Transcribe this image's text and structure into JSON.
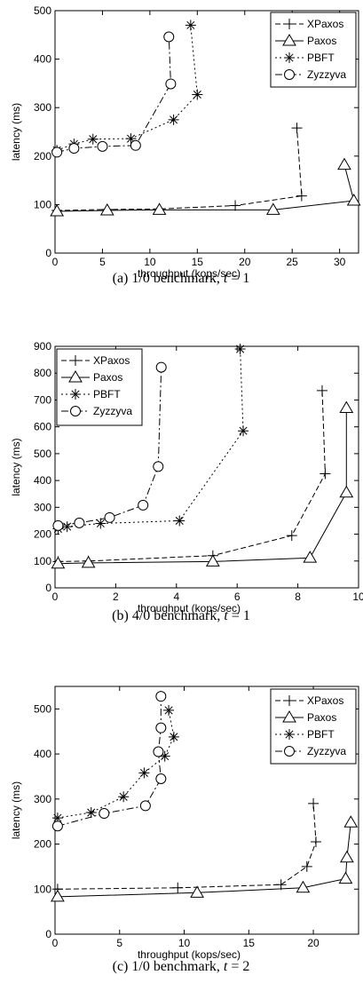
{
  "chart_data": [
    {
      "type": "line",
      "caption": "(a) 1/0 benchmark, t = 1",
      "caption_prefix": "(a) 1/0 benchmark, ",
      "caption_var": "t",
      "caption_suffix": " = 1",
      "xlabel": "throughput (kops/sec)",
      "ylabel": "latency (ms)",
      "xlim": [
        0,
        32
      ],
      "ylim": [
        0,
        500
      ],
      "xticks": [
        "0",
        "5",
        "10",
        "15",
        "20",
        "25",
        "30"
      ],
      "xtick_values": [
        0,
        5,
        10,
        15,
        20,
        25,
        30
      ],
      "yticks": [
        "0",
        "100",
        "200",
        "300",
        "400",
        "500"
      ],
      "ytick_values": [
        0,
        100,
        200,
        300,
        400,
        500
      ],
      "legend_position": "top-right",
      "series": [
        {
          "name": "XPaxos",
          "marker": "plus",
          "dash": "6,3",
          "points": [
            [
              0.2,
              88
            ],
            [
              5.5,
              90
            ],
            [
              11.0,
              91
            ],
            [
              19.0,
              98
            ],
            [
              26.0,
              118
            ],
            [
              25.5,
              258
            ]
          ]
        },
        {
          "name": "Paxos",
          "marker": "triangle",
          "dash": "none",
          "points": [
            [
              0.2,
              86
            ],
            [
              5.5,
              88
            ],
            [
              11.0,
              89
            ],
            [
              23.0,
              89
            ],
            [
              31.5,
              108
            ],
            [
              30.5,
              182
            ]
          ]
        },
        {
          "name": "PBFT",
          "marker": "star",
          "dash": "2,3",
          "points": [
            [
              0.2,
              212
            ],
            [
              2.0,
              225
            ],
            [
              4.0,
              235
            ],
            [
              8.0,
              236
            ],
            [
              12.5,
              275
            ],
            [
              15.0,
              327
            ],
            [
              14.3,
              470
            ]
          ]
        },
        {
          "name": "Zyzzyva",
          "marker": "circle",
          "dash": "8,3,2,3",
          "points": [
            [
              0.2,
              208
            ],
            [
              2.0,
              216
            ],
            [
              5.0,
              220
            ],
            [
              8.5,
              222
            ],
            [
              12.2,
              349
            ],
            [
              12.0,
              446
            ]
          ]
        }
      ]
    },
    {
      "type": "line",
      "caption": "(b) 4/0 benchmark, t = 1",
      "caption_prefix": "(b) 4/0 benchmark, ",
      "caption_var": "t",
      "caption_suffix": " = 1",
      "xlabel": "throughput (kops/sec)",
      "ylabel": "latency (ms)",
      "xlim": [
        0,
        10
      ],
      "ylim": [
        0,
        900
      ],
      "xticks": [
        "0",
        "2",
        "4",
        "6",
        "8",
        "10"
      ],
      "xtick_values": [
        0,
        2,
        4,
        6,
        8,
        10
      ],
      "yticks": [
        "0",
        "100",
        "200",
        "300",
        "400",
        "500",
        "600",
        "700",
        "800",
        "900"
      ],
      "ytick_values": [
        0,
        100,
        200,
        300,
        400,
        500,
        600,
        700,
        800,
        900
      ],
      "legend_position": "top-left",
      "series": [
        {
          "name": "XPaxos",
          "marker": "plus",
          "dash": "6,3",
          "points": [
            [
              0.1,
              98
            ],
            [
              1.1,
              100
            ],
            [
              5.2,
              120
            ],
            [
              7.8,
              195
            ],
            [
              8.9,
              425
            ],
            [
              8.8,
              735
            ]
          ]
        },
        {
          "name": "Paxos",
          "marker": "triangle",
          "dash": "none",
          "points": [
            [
              0.1,
              90
            ],
            [
              1.1,
              93
            ],
            [
              5.2,
              98
            ],
            [
              8.4,
              112
            ],
            [
              9.6,
              355
            ],
            [
              9.6,
              670
            ]
          ]
        },
        {
          "name": "PBFT",
          "marker": "star",
          "dash": "2,3",
          "points": [
            [
              0.1,
              220
            ],
            [
              0.4,
              228
            ],
            [
              1.5,
              240
            ],
            [
              4.1,
              250
            ],
            [
              6.2,
              585
            ],
            [
              6.1,
              890
            ]
          ]
        },
        {
          "name": "Zyzzyva",
          "marker": "circle",
          "dash": "8,3,2,3",
          "points": [
            [
              0.1,
              232
            ],
            [
              0.8,
              242
            ],
            [
              1.8,
              262
            ],
            [
              2.9,
              308
            ],
            [
              3.4,
              452
            ],
            [
              3.5,
              822
            ]
          ]
        }
      ]
    },
    {
      "type": "line",
      "caption": "(c) 1/0 benchmark, t = 2",
      "caption_prefix": "(c) 1/0 benchmark, ",
      "caption_var": "t",
      "caption_suffix": " = 2",
      "xlabel": "throughput (kops/sec)",
      "ylabel": "latency (ms)",
      "xlim": [
        0,
        23.5
      ],
      "ylim": [
        0,
        550
      ],
      "xticks": [
        "0",
        "5",
        "10",
        "15",
        "20"
      ],
      "xtick_values": [
        0,
        5,
        10,
        15,
        20
      ],
      "yticks": [
        "0",
        "100",
        "200",
        "300",
        "400",
        "500"
      ],
      "ytick_values": [
        0,
        100,
        200,
        300,
        400,
        500
      ],
      "legend_position": "top-right",
      "series": [
        {
          "name": "XPaxos",
          "marker": "plus",
          "dash": "6,3",
          "points": [
            [
              0.2,
              100
            ],
            [
              9.5,
              103
            ],
            [
              17.5,
              110
            ],
            [
              19.5,
              150
            ],
            [
              20.2,
              205
            ],
            [
              20.0,
              290
            ]
          ]
        },
        {
          "name": "Paxos",
          "marker": "triangle",
          "dash": "none",
          "points": [
            [
              0.2,
              83
            ],
            [
              11.0,
              92
            ],
            [
              19.2,
              103
            ],
            [
              22.5,
              123
            ],
            [
              22.6,
              170
            ],
            [
              22.9,
              248
            ]
          ]
        },
        {
          "name": "PBFT",
          "marker": "star",
          "dash": "2,3",
          "points": [
            [
              0.2,
              258
            ],
            [
              2.8,
              270
            ],
            [
              5.3,
              305
            ],
            [
              6.9,
              358
            ],
            [
              8.5,
              395
            ],
            [
              9.2,
              438
            ],
            [
              8.8,
              497
            ]
          ]
        },
        {
          "name": "Zyzzyva",
          "marker": "circle",
          "dash": "8,3,2,3",
          "points": [
            [
              0.2,
              240
            ],
            [
              3.8,
              268
            ],
            [
              7.0,
              285
            ],
            [
              8.2,
              345
            ],
            [
              8.0,
              405
            ],
            [
              8.2,
              458
            ],
            [
              8.2,
              528
            ]
          ]
        }
      ]
    }
  ]
}
